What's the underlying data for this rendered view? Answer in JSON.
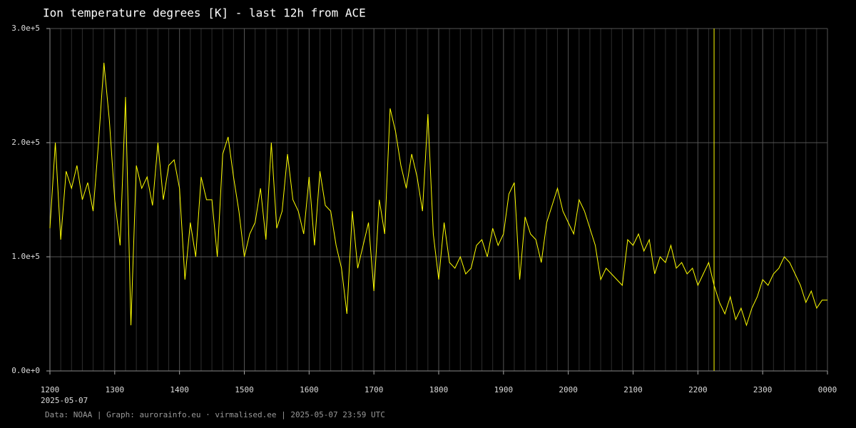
{
  "chart_data": {
    "type": "line",
    "title": "Ion temperature degrees [K] - last 12h from ACE",
    "x_sublabel": "2025-05-07",
    "footer": "Data: NOAA | Graph: aurorainfo.eu · virmalised.ee | 2025-05-07 23:59 UTC",
    "categories": [
      "1200",
      null,
      null,
      null,
      null,
      null,
      null,
      null,
      null,
      null,
      null,
      null,
      "1300",
      null,
      null,
      null,
      null,
      null,
      null,
      null,
      null,
      null,
      null,
      null,
      "1400",
      null,
      null,
      null,
      null,
      null,
      null,
      null,
      null,
      null,
      null,
      null,
      "1500",
      null,
      null,
      null,
      null,
      null,
      null,
      null,
      null,
      null,
      null,
      null,
      "1600",
      null,
      null,
      null,
      null,
      null,
      null,
      null,
      null,
      null,
      null,
      null,
      "1700",
      null,
      null,
      null,
      null,
      null,
      null,
      null,
      null,
      null,
      null,
      null,
      "1800",
      null,
      null,
      null,
      null,
      null,
      null,
      null,
      null,
      null,
      null,
      null,
      "1900",
      null,
      null,
      null,
      null,
      null,
      null,
      null,
      null,
      null,
      null,
      null,
      "2000",
      null,
      null,
      null,
      null,
      null,
      null,
      null,
      null,
      null,
      null,
      null,
      "2100",
      null,
      null,
      null,
      null,
      null,
      null,
      null,
      null,
      null,
      null,
      null,
      "2200",
      null,
      null,
      null,
      null,
      null,
      null,
      null,
      null,
      null,
      null,
      null,
      "2300",
      null,
      null,
      null,
      null,
      null,
      null,
      null,
      null,
      null,
      null,
      null,
      "0000"
    ],
    "values": [
      125000,
      200000,
      115000,
      175000,
      160000,
      180000,
      150000,
      165000,
      140000,
      200000,
      270000,
      220000,
      150000,
      110000,
      240000,
      40000,
      180000,
      160000,
      170000,
      145000,
      200000,
      150000,
      180000,
      185000,
      160000,
      80000,
      130000,
      100000,
      170000,
      150000,
      150000,
      100000,
      190000,
      205000,
      170000,
      140000,
      100000,
      120000,
      130000,
      160000,
      115000,
      200000,
      125000,
      140000,
      190000,
      150000,
      140000,
      120000,
      170000,
      110000,
      175000,
      145000,
      140000,
      110000,
      90000,
      50000,
      140000,
      90000,
      110000,
      130000,
      70000,
      150000,
      120000,
      230000,
      210000,
      180000,
      160000,
      190000,
      170000,
      140000,
      225000,
      120000,
      80000,
      130000,
      95000,
      90000,
      100000,
      85000,
      90000,
      110000,
      115000,
      100000,
      125000,
      110000,
      120000,
      155000,
      165000,
      80000,
      135000,
      120000,
      115000,
      95000,
      130000,
      145000,
      160000,
      140000,
      130000,
      120000,
      150000,
      140000,
      125000,
      110000,
      80000,
      90000,
      85000,
      80000,
      75000,
      115000,
      110000,
      120000,
      105000,
      115000,
      85000,
      100000,
      95000,
      110000,
      90000,
      95000,
      85000,
      90000,
      75000,
      85000,
      95000,
      75000,
      60000,
      50000,
      65000,
      45000,
      55000,
      40000,
      55000,
      65000,
      80000,
      75000,
      85000,
      90000,
      100000,
      95000,
      85000,
      75000,
      60000,
      70000,
      55000,
      62000,
      62000
    ],
    "color": "#ffff00",
    "vline": {
      "index": 123,
      "color": "#ffff00"
    },
    "ylim": [
      0,
      300000
    ],
    "yticks": [
      {
        "value": 0,
        "label": "0.0e+0"
      },
      {
        "value": 100000,
        "label": "1.0e+5"
      },
      {
        "value": 200000,
        "label": "2.0e+5"
      },
      {
        "value": 300000,
        "label": "3.0e+5"
      }
    ],
    "grid": true
  }
}
